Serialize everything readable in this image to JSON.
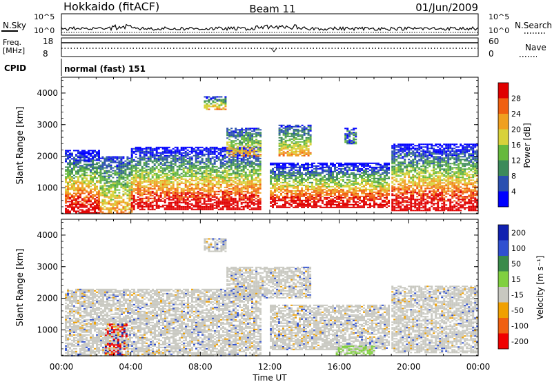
{
  "header": {
    "station": "Hokkaido (fitACF)",
    "beam": "Beam 11",
    "date": "01/Jun/2009"
  },
  "strip_panels": {
    "nsky_label": "N.Sky",
    "nsky_ticks": [
      "10^5",
      "10^0"
    ],
    "nsearch_label": "N.Search",
    "nsearch_ticks": [
      "10^5",
      "10^0"
    ],
    "freq_label_1": "Freq.",
    "freq_label_2": "[MHz]",
    "freq_ticks": [
      "18",
      "8"
    ],
    "nave_label": "Nave",
    "nave_ticks": [
      "60",
      "0"
    ],
    "cpid_label": "CPID",
    "cpid_value": "normal (fast) 151"
  },
  "chart_data": [
    {
      "type": "heatmap",
      "name": "power",
      "ylabel": "Slant Range [km]",
      "xlabel": "",
      "x_ticks": [
        "00:00",
        "04:00",
        "08:00",
        "12:00",
        "16:00",
        "20:00",
        "00:00"
      ],
      "y_ticks": [
        "1000",
        "2000",
        "3000",
        "4000"
      ],
      "ylim": [
        180,
        4500
      ],
      "xlim_hours": [
        0,
        24
      ],
      "colorbar_label": "Power [dB]",
      "colorbar_ticks": [
        "4",
        "8",
        "12",
        "16",
        "20",
        "24",
        "28"
      ],
      "colorbar_colors": [
        "#0000ff",
        "#2a4fb0",
        "#3c8a5a",
        "#66b93c",
        "#d8d23a",
        "#f0a020",
        "#f06010",
        "#e00000"
      ],
      "echo_regions": [
        {
          "t_start": 0.2,
          "t_end": 2.2,
          "r_min": 200,
          "r_max": 2200,
          "strength": "strong"
        },
        {
          "t_start": 2.2,
          "t_end": 4.0,
          "r_min": 200,
          "r_max": 2000,
          "strength": "medium"
        },
        {
          "t_start": 4.0,
          "t_end": 11.5,
          "r_min": 300,
          "r_max": 2300,
          "strength": "strong"
        },
        {
          "t_start": 8.2,
          "t_end": 9.5,
          "r_min": 3500,
          "r_max": 3900,
          "strength": "medium"
        },
        {
          "t_start": 9.5,
          "t_end": 11.5,
          "r_min": 2000,
          "r_max": 2900,
          "strength": "medium"
        },
        {
          "t_start": 12.0,
          "t_end": 18.8,
          "r_min": 400,
          "r_max": 1800,
          "strength": "strong"
        },
        {
          "t_start": 12.5,
          "t_end": 14.3,
          "r_min": 2000,
          "r_max": 3000,
          "strength": "medium"
        },
        {
          "t_start": 16.3,
          "t_end": 17.0,
          "r_min": 2400,
          "r_max": 2900,
          "strength": "weak"
        },
        {
          "t_start": 19.0,
          "t_end": 24.0,
          "r_min": 300,
          "r_max": 2400,
          "strength": "strong"
        }
      ]
    },
    {
      "type": "heatmap",
      "name": "velocity",
      "ylabel": "Slant Range [km]",
      "xlabel": "Time UT",
      "x_ticks": [
        "00:00",
        "04:00",
        "08:00",
        "12:00",
        "16:00",
        "20:00",
        "00:00"
      ],
      "y_ticks": [
        "1000",
        "2000",
        "3000",
        "4000"
      ],
      "ylim": [
        180,
        4500
      ],
      "xlim_hours": [
        0,
        24
      ],
      "colorbar_label": "Velocity [m s⁻¹]",
      "colorbar_ticks": [
        "200",
        "100",
        "50",
        "15",
        "-15",
        "-50",
        "-100",
        "-200"
      ],
      "colorbar_colors": [
        "#1020b0",
        "#3050d0",
        "#3a8a4a",
        "#80d040",
        "#c8c8c0",
        "#f0a000",
        "#f06010",
        "#f00000"
      ],
      "echo_regions": [
        {
          "t_start": 0.2,
          "t_end": 11.5,
          "r_min": 200,
          "r_max": 2300,
          "tone": "ground"
        },
        {
          "t_start": 2.5,
          "t_end": 3.7,
          "r_min": 200,
          "r_max": 1200,
          "tone": "mixed"
        },
        {
          "t_start": 8.2,
          "t_end": 9.5,
          "r_min": 3500,
          "r_max": 3900,
          "tone": "ground"
        },
        {
          "t_start": 9.5,
          "t_end": 14.3,
          "r_min": 2000,
          "r_max": 3000,
          "tone": "ground"
        },
        {
          "t_start": 12.0,
          "t_end": 18.8,
          "r_min": 400,
          "r_max": 1800,
          "tone": "ground"
        },
        {
          "t_start": 15.8,
          "t_end": 18.0,
          "r_min": 200,
          "r_max": 500,
          "tone": "green"
        },
        {
          "t_start": 19.0,
          "t_end": 24.0,
          "r_min": 300,
          "r_max": 2400,
          "tone": "ground"
        }
      ]
    }
  ]
}
